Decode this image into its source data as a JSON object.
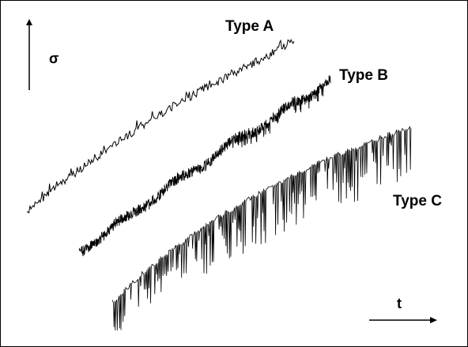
{
  "chart_data": {
    "type": "line",
    "axes": {
      "y_symbol": "σ",
      "x_symbol": "t"
    },
    "series": [
      {
        "name": "Type A",
        "behavior": "smooth serrations",
        "x": [
          0.0,
          0.05,
          0.1,
          0.15,
          0.2,
          0.25,
          0.3,
          0.35,
          0.4,
          0.45,
          0.5,
          0.55,
          0.6,
          0.65,
          0.7,
          0.75,
          0.8,
          0.85,
          0.9,
          0.95,
          1.0
        ],
        "y": [
          0.0,
          0.07,
          0.13,
          0.19,
          0.25,
          0.31,
          0.36,
          0.42,
          0.47,
          0.52,
          0.57,
          0.62,
          0.66,
          0.71,
          0.75,
          0.79,
          0.83,
          0.87,
          0.91,
          0.96,
          1.0
        ]
      },
      {
        "name": "Type B",
        "behavior": "stepped dense serrations",
        "x": [
          0.0,
          0.05,
          0.1,
          0.15,
          0.2,
          0.25,
          0.3,
          0.35,
          0.4,
          0.45,
          0.5,
          0.55,
          0.6,
          0.65,
          0.7,
          0.75,
          0.8,
          0.85,
          0.9,
          0.95,
          1.0
        ],
        "y": [
          0.0,
          0.06,
          0.11,
          0.16,
          0.21,
          0.27,
          0.32,
          0.37,
          0.42,
          0.47,
          0.52,
          0.57,
          0.62,
          0.67,
          0.71,
          0.76,
          0.8,
          0.85,
          0.89,
          0.95,
          1.0
        ]
      },
      {
        "name": "Type C",
        "behavior": "large downward drops",
        "x": [
          0.0,
          0.05,
          0.1,
          0.15,
          0.2,
          0.25,
          0.3,
          0.35,
          0.4,
          0.45,
          0.5,
          0.55,
          0.6,
          0.65,
          0.7,
          0.75,
          0.8,
          0.85,
          0.9,
          0.95,
          1.0
        ],
        "y": [
          0.0,
          0.08,
          0.16,
          0.23,
          0.3,
          0.36,
          0.42,
          0.48,
          0.53,
          0.58,
          0.63,
          0.67,
          0.72,
          0.76,
          0.8,
          0.84,
          0.87,
          0.9,
          0.94,
          0.97,
          1.0
        ]
      }
    ],
    "legend": "labels beside curves",
    "grid": false,
    "colors": {
      "line": "#000000",
      "background": "#ffffff"
    }
  }
}
